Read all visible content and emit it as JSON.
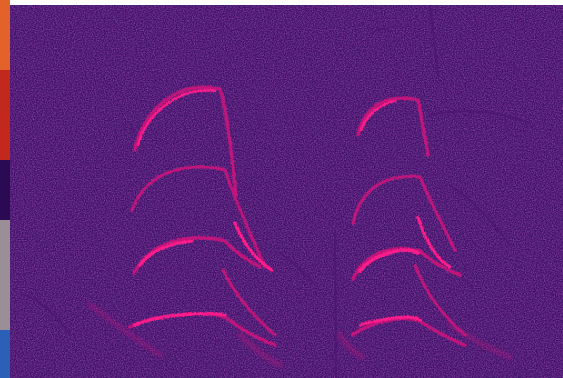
{
  "image": {
    "kind": "spectrogram",
    "colormap": "magma-like",
    "colors": {
      "background_dark": "#2a0a52",
      "background_mid": "#3a1063",
      "background_light": "#4e1673",
      "trace_mid": "#c0147c",
      "trace_bright": "#ff1f8a",
      "left_strip_orange": "#e2622a",
      "left_strip_red": "#c2281e",
      "left_strip_gray": "#9a8f96",
      "left_strip_blue": "#2b5fb8"
    },
    "call_groups": 2,
    "harmonics_per_call": 4
  }
}
